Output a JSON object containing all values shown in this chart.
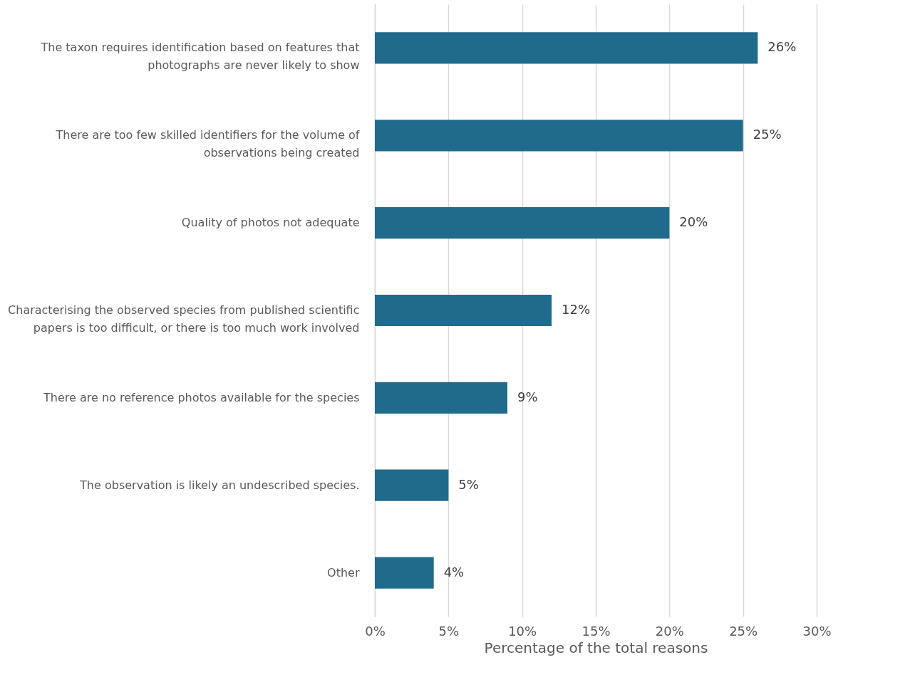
{
  "chart_data": {
    "type": "bar",
    "orientation": "horizontal",
    "categories": [
      "The taxon requires identification based on features that photographs are never likely to show",
      "There are too few skilled identifiers for the volume of observations being created",
      "Quality of photos not adequate",
      "Characterising the observed species from published scientific papers  is too difficult, or there is too much work involved",
      "There are no reference photos available for the species",
      "The observation is likely an undescribed species.",
      "Other"
    ],
    "values": [
      26,
      25,
      20,
      12,
      9,
      5,
      4
    ],
    "value_labels": [
      "26%",
      "25%",
      "20%",
      "12%",
      "9%",
      "5%",
      "4%"
    ],
    "color": "#206a8c",
    "xlabel": "Percentage of the total reasons",
    "xlim": [
      0,
      30
    ],
    "xticks": [
      {
        "value": 0,
        "label": "0%"
      },
      {
        "value": 5,
        "label": "5%"
      },
      {
        "value": 10,
        "label": "10%"
      },
      {
        "value": 15,
        "label": "15%"
      },
      {
        "value": 20,
        "label": "20%"
      },
      {
        "value": 25,
        "label": "25%"
      },
      {
        "value": 30,
        "label": "30%"
      }
    ],
    "grid": "x"
  }
}
